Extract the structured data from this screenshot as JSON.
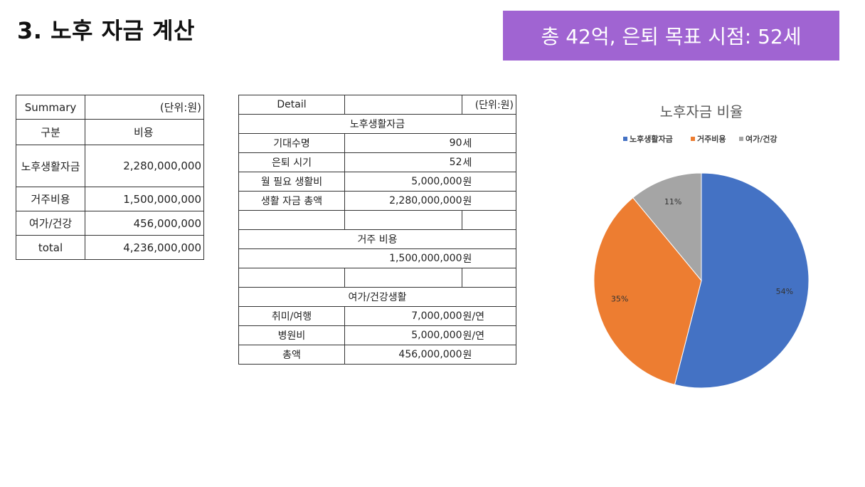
{
  "title": "3. 노후 자금 계산",
  "banner": "총 42억, 은퇴 목표 시점: 52세",
  "summary": {
    "header_label": "Summary",
    "unit": "(단위:원)",
    "col1": "구분",
    "col2": "비용",
    "rows": [
      {
        "label": "노후생활자금",
        "value": "2,280,000,000"
      },
      {
        "label": "거주비용",
        "value": "1,500,000,000"
      },
      {
        "label": "여가/건강",
        "value": "456,000,000"
      },
      {
        "label": "total",
        "value": "4,236,000,000"
      }
    ]
  },
  "detail": {
    "header_label": "Detail",
    "unit": "(단위:원)",
    "section1": "노후생활자금",
    "rows1": [
      {
        "label": "기대수명",
        "value": "90",
        "unit": "세"
      },
      {
        "label": "은퇴 시기",
        "value": "52",
        "unit": "세"
      },
      {
        "label": "월 필요 생활비",
        "value": "5,000,000",
        "unit": "원"
      },
      {
        "label": "생활 자금 총액",
        "value": "2,280,000,000",
        "unit": "원"
      }
    ],
    "section2": "거주 비용",
    "housing": {
      "value": "1,500,000,000",
      "unit": "원"
    },
    "section3": "여가/건강생활",
    "rows3": [
      {
        "label": "취미/여행",
        "value": "7,000,000",
        "unit": "원/연"
      },
      {
        "label": "병원비",
        "value": "5,000,000",
        "unit": "원/연"
      },
      {
        "label": "총액",
        "value": "456,000,000",
        "unit": "원"
      }
    ]
  },
  "chart_data": {
    "type": "pie",
    "title": "노후자금 비율",
    "legend_position": "top",
    "categories": [
      "노후생활자금",
      "거주비용",
      "여가/건강"
    ],
    "values": [
      54,
      35,
      11
    ],
    "labels": [
      "54%",
      "35%",
      "11%"
    ],
    "colors": [
      "#4472c4",
      "#ed7d31",
      "#a5a5a5"
    ]
  }
}
